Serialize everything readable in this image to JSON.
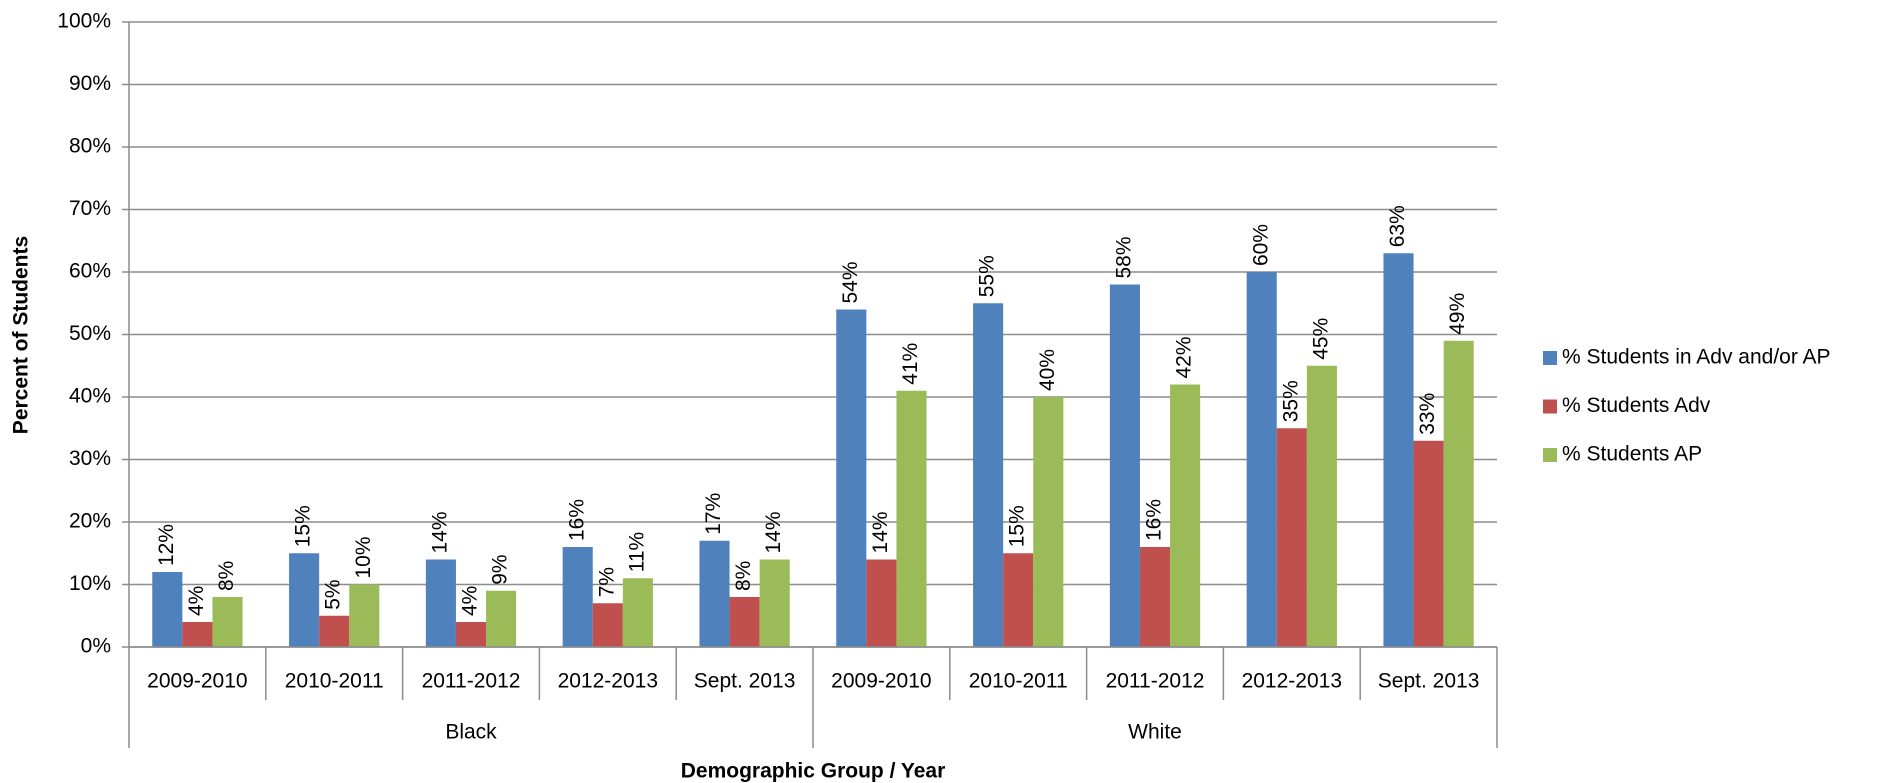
{
  "chart_data": {
    "type": "bar",
    "x_label": "Demographic Group / Year",
    "y_label": "Percent of Students",
    "categories": [
      "2009-2010",
      "2010-2011",
      "2011-2012",
      "2012-2013",
      "Sept. 2013",
      "2009-2010",
      "2010-2011",
      "2011-2012",
      "2012-2013",
      "Sept. 2013"
    ],
    "groups": [
      "Black",
      "White"
    ],
    "series": [
      {
        "name": "% Students in Adv and/or AP",
        "color": "#4f81bd",
        "values": [
          12,
          15,
          14,
          16,
          17,
          54,
          55,
          58,
          60,
          63
        ],
        "value_labels": [
          "12%",
          "15%",
          "14%",
          "16%",
          "17%",
          "54%",
          "55%",
          "58%",
          "60%",
          "63%"
        ]
      },
      {
        "name": "% Students Adv",
        "color": "#c0504d",
        "values": [
          4,
          5,
          4,
          7,
          8,
          14,
          15,
          16,
          35,
          33
        ],
        "value_labels": [
          "4%",
          "5%",
          "4%",
          "7%",
          "8%",
          "14%",
          "15%",
          "16%",
          "35%",
          "33%"
        ]
      },
      {
        "name": "% Students AP",
        "color": "#9bbb59",
        "values": [
          8,
          10,
          9,
          11,
          14,
          41,
          40,
          42,
          45,
          49
        ],
        "value_labels": [
          "8%",
          "10%",
          "9%",
          "11%",
          "14%",
          "41%",
          "40%",
          "42%",
          "45%",
          "49%"
        ]
      }
    ],
    "ylim": [
      0,
      100
    ],
    "yticks": [
      {
        "value": 0,
        "label": "0%"
      },
      {
        "value": 10,
        "label": "10%"
      },
      {
        "value": 20,
        "label": "20%"
      },
      {
        "value": 30,
        "label": "30%"
      },
      {
        "value": 40,
        "label": "40%"
      },
      {
        "value": 50,
        "label": "50%"
      },
      {
        "value": 60,
        "label": "60%"
      },
      {
        "value": 70,
        "label": "70%"
      },
      {
        "value": 80,
        "label": "80%"
      },
      {
        "value": 90,
        "label": "90%"
      },
      {
        "value": 100,
        "label": "100%"
      }
    ],
    "grid": true,
    "legend": "right"
  }
}
